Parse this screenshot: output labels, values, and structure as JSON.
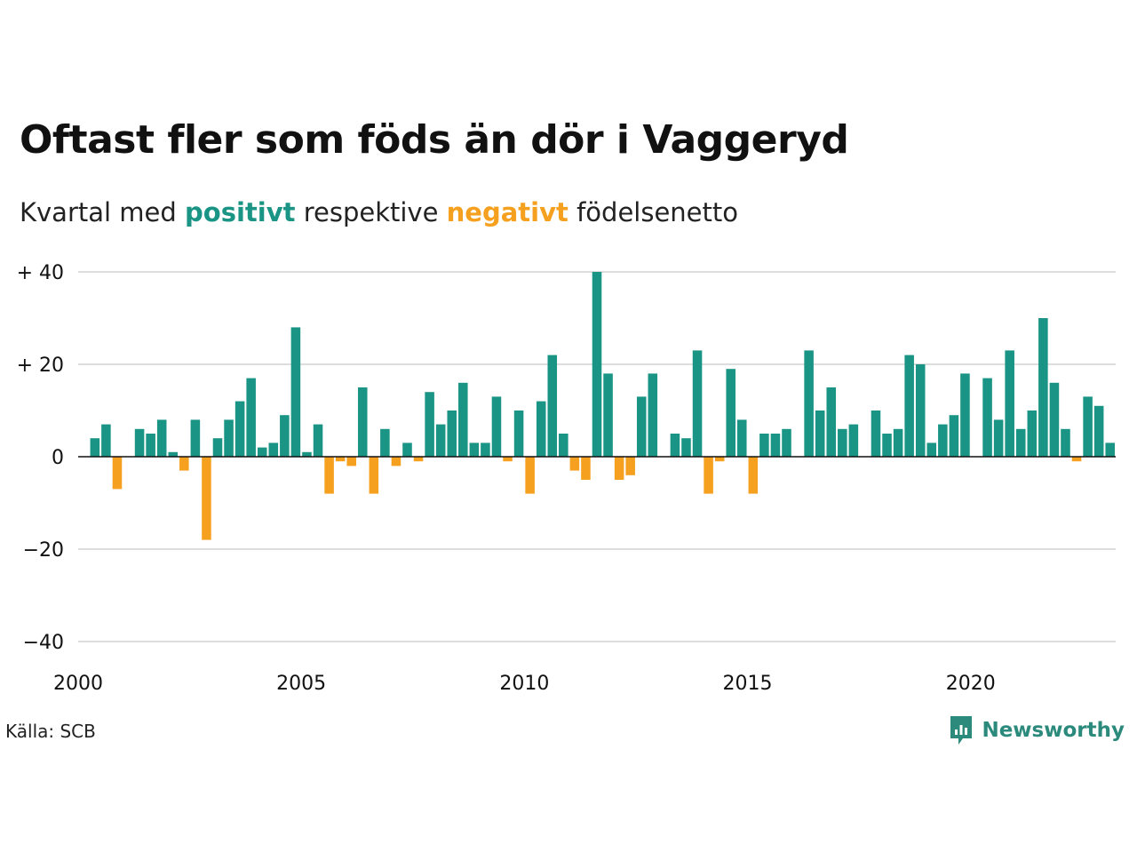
{
  "title": "Oftast fler som föds än dör i Vaggeryd",
  "subtitle": {
    "prefix": "Kvartal med",
    "positive": "positivt",
    "middle": "respektive",
    "negative": "negativt",
    "suffix": "födelsenetto"
  },
  "source": "Källa: SCB",
  "brand": {
    "name": "Newsworthy",
    "icon": "newsworthy-logo-icon"
  },
  "colors": {
    "positive": "#1a9585",
    "negative": "#f5a01e",
    "grid": "#dddddd",
    "brand": "#2b8a7b"
  },
  "chart_data": {
    "type": "bar",
    "title": "Oftast fler som föds än dör i Vaggeryd",
    "x_start": "2000 Q2",
    "categories": [
      "2000 Q2",
      "2000 Q3",
      "2000 Q4",
      "2001 Q1",
      "2001 Q2",
      "2001 Q3",
      "2001 Q4",
      "2002 Q1",
      "2002 Q2",
      "2002 Q3",
      "2002 Q4",
      "2003 Q1",
      "2003 Q2",
      "2003 Q3",
      "2003 Q4",
      "2004 Q1",
      "2004 Q2",
      "2004 Q3",
      "2004 Q4",
      "2005 Q1",
      "2005 Q2",
      "2005 Q3",
      "2005 Q4",
      "2006 Q1",
      "2006 Q2",
      "2006 Q3",
      "2006 Q4",
      "2007 Q1",
      "2007 Q2",
      "2007 Q3",
      "2007 Q4",
      "2008 Q1",
      "2008 Q2",
      "2008 Q3",
      "2008 Q4",
      "2009 Q1",
      "2009 Q2",
      "2009 Q3",
      "2009 Q4",
      "2010 Q1",
      "2010 Q2",
      "2010 Q3",
      "2010 Q4",
      "2011 Q1",
      "2011 Q2",
      "2011 Q3",
      "2011 Q4",
      "2012 Q1",
      "2012 Q2",
      "2012 Q3",
      "2012 Q4",
      "2013 Q1",
      "2013 Q2",
      "2013 Q3",
      "2013 Q4",
      "2014 Q1",
      "2014 Q2",
      "2014 Q3",
      "2014 Q4",
      "2015 Q1",
      "2015 Q2",
      "2015 Q3",
      "2015 Q4",
      "2016 Q1",
      "2016 Q2",
      "2016 Q3",
      "2016 Q4",
      "2017 Q1",
      "2017 Q2",
      "2017 Q3",
      "2017 Q4",
      "2018 Q1",
      "2018 Q2",
      "2018 Q3",
      "2018 Q4",
      "2019 Q1",
      "2019 Q2",
      "2019 Q3",
      "2019 Q4",
      "2020 Q1",
      "2020 Q2",
      "2020 Q3",
      "2020 Q4",
      "2021 Q1",
      "2021 Q2",
      "2021 Q3",
      "2021 Q4",
      "2022 Q1",
      "2022 Q2",
      "2022 Q3",
      "2022 Q4",
      "2023 Q1"
    ],
    "values": [
      4,
      7,
      -7,
      0,
      6,
      5,
      8,
      1,
      -3,
      8,
      -18,
      4,
      8,
      12,
      17,
      2,
      3,
      9,
      28,
      1,
      7,
      -8,
      -1,
      -2,
      15,
      -8,
      6,
      -2,
      3,
      -1,
      14,
      7,
      10,
      16,
      3,
      3,
      13,
      -1,
      10,
      -8,
      12,
      22,
      5,
      -3,
      -5,
      40,
      18,
      -5,
      -4,
      13,
      18,
      0,
      5,
      4,
      23,
      -8,
      -1,
      19,
      8,
      -8,
      5,
      5,
      6,
      0,
      23,
      10,
      15,
      6,
      7,
      0,
      10,
      5,
      6,
      22,
      20,
      3,
      7,
      9,
      18,
      0,
      17,
      8,
      23,
      6,
      10,
      30,
      16,
      6,
      -1,
      13,
      11,
      3
    ],
    "ylim": [
      -40,
      40
    ],
    "yticks": [
      40,
      20,
      0,
      -20,
      -40
    ],
    "ytick_labels": [
      "+ 40",
      "+ 20",
      "0",
      "−20",
      "−40"
    ],
    "xticks": [
      "2000",
      "2005",
      "2010",
      "2015",
      "2020"
    ],
    "grid": true,
    "legend": "none"
  }
}
